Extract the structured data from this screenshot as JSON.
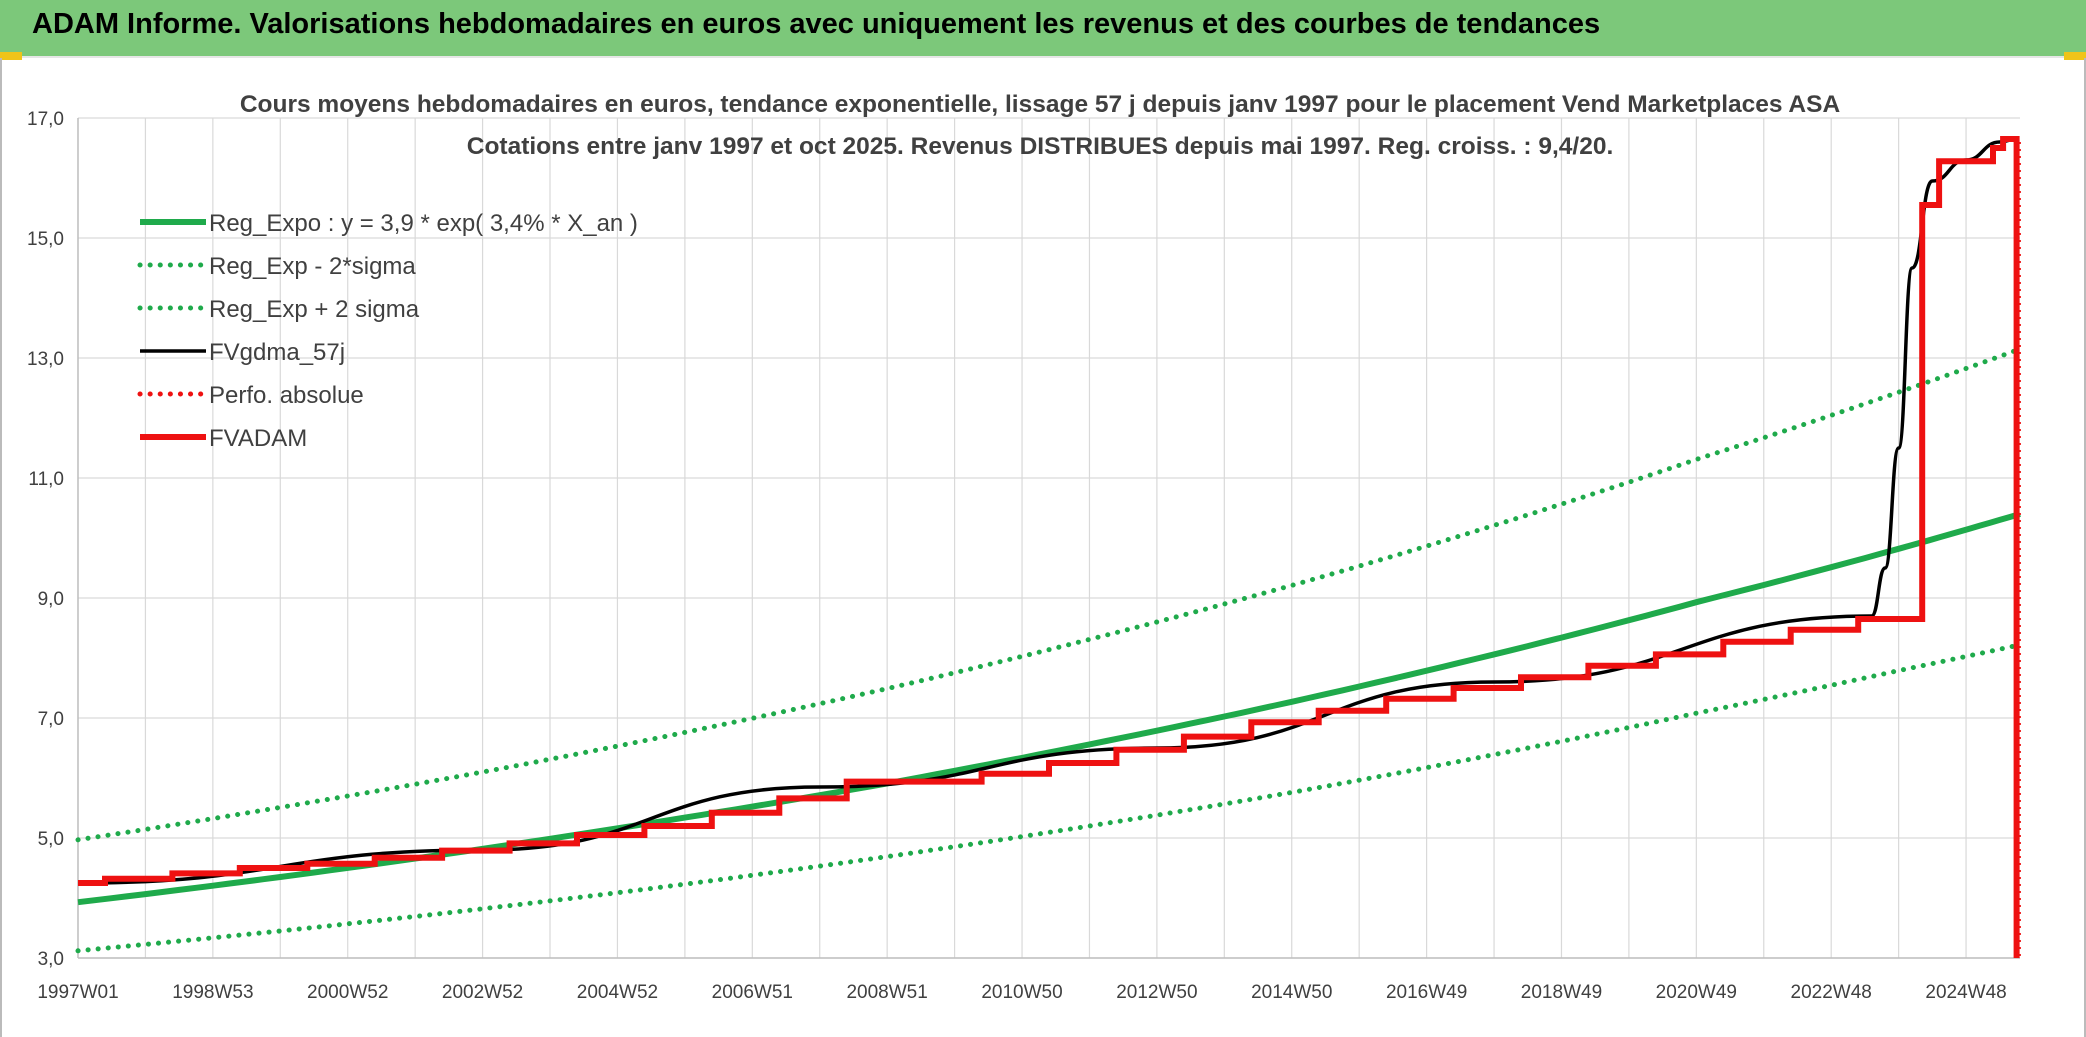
{
  "header": {
    "title": "ADAM Informe. Valorisations hebdomadaires en euros avec uniquement les revenus et des courbes de tendances"
  },
  "colors": {
    "banner": "#7cc87a",
    "reg_green": "#1faa4b",
    "red": "#ee1111",
    "black": "#000000",
    "grid": "#d9d9d9"
  },
  "chart_data": {
    "type": "line",
    "title": "Cours moyens hebdomadaires en euros, tendance exponentielle, lissage 57 j depuis janv 1997 pour le placement Vend Marketplaces ASA",
    "subtitle": "Cotations entre janv 1997 et oct 2025. Revenus DISTRIBUES depuis mai 1997. Reg. croiss. : 9,4/20.",
    "xlabel": "",
    "ylabel": "",
    "x_range": [
      1997.0,
      2025.8
    ],
    "ylim": [
      3.0,
      17.0
    ],
    "y_ticks": [
      "3,0",
      "5,0",
      "7,0",
      "9,0",
      "11,0",
      "13,0",
      "15,0",
      "17,0"
    ],
    "x_ticks": [
      {
        "label": "1997W01",
        "x": 1997.0
      },
      {
        "label": "1998W53",
        "x": 1999.0
      },
      {
        "label": "2000W52",
        "x": 2001.0
      },
      {
        "label": "2002W52",
        "x": 2003.0
      },
      {
        "label": "2004W52",
        "x": 2005.0
      },
      {
        "label": "2006W51",
        "x": 2007.0
      },
      {
        "label": "2008W51",
        "x": 2009.0
      },
      {
        "label": "2010W50",
        "x": 2011.0
      },
      {
        "label": "2012W50",
        "x": 2013.0
      },
      {
        "label": "2014W50",
        "x": 2015.0
      },
      {
        "label": "2016W49",
        "x": 2017.0
      },
      {
        "label": "2018W49",
        "x": 2019.0
      },
      {
        "label": "2020W49",
        "x": 2021.0
      },
      {
        "label": "2022W48",
        "x": 2023.0
      },
      {
        "label": "2024W48",
        "x": 2025.0
      }
    ],
    "legend": {
      "placement": "top-left",
      "entries": [
        {
          "name": "Reg_Expo : y = 3,9 * exp( 3,4% *  X_an )",
          "color": "#1faa4b",
          "style": "solid-thick"
        },
        {
          "name": "Reg_Exp - 2*sigma",
          "color": "#1faa4b",
          "style": "dotted"
        },
        {
          "name": "Reg_Exp + 2 sigma",
          "color": "#1faa4b",
          "style": "dotted"
        },
        {
          "name": "FVgdma_57j",
          "color": "#000000",
          "style": "solid"
        },
        {
          "name": "Perfo. absolue",
          "color": "#ee1111",
          "style": "dotted"
        },
        {
          "name": "FVADAM",
          "color": "#ee1111",
          "style": "solid-thick"
        }
      ]
    },
    "series": [
      {
        "name": "Reg_Expo : y = 3,9 * exp( 3,4% *  X_an )",
        "x": [
          1997.0,
          2000.0,
          2003.0,
          2006.0,
          2009.0,
          2012.0,
          2015.0,
          2018.0,
          2021.0,
          2024.0,
          2025.8
        ],
        "values": [
          3.93,
          4.35,
          4.82,
          5.34,
          5.91,
          6.56,
          7.27,
          8.06,
          8.93,
          9.82,
          10.4
        ]
      },
      {
        "name": "Reg_Exp - 2*sigma",
        "x": [
          1997.0,
          2000.0,
          2003.0,
          2006.0,
          2009.0,
          2012.0,
          2015.0,
          2018.0,
          2021.0,
          2024.0,
          2025.8
        ],
        "values": [
          3.12,
          3.45,
          3.82,
          4.23,
          4.69,
          5.2,
          5.76,
          6.39,
          7.08,
          7.79,
          8.22
        ]
      },
      {
        "name": "Reg_Exp + 2 sigma",
        "x": [
          1997.0,
          2000.0,
          2003.0,
          2006.0,
          2009.0,
          2012.0,
          2015.0,
          2018.0,
          2021.0,
          2024.0,
          2025.8
        ],
        "values": [
          4.97,
          5.51,
          6.1,
          6.76,
          7.49,
          8.31,
          9.21,
          10.21,
          11.31,
          12.43,
          13.15
        ]
      },
      {
        "name": "FVgdma_57j",
        "x": [
          1997.0,
          2003.0,
          2008.0,
          2013.0,
          2018.0,
          2023.6,
          2023.8,
          2024.0,
          2024.2,
          2024.5,
          2025.0,
          2025.5,
          2025.75
        ],
        "values": [
          4.25,
          4.8,
          5.85,
          6.5,
          7.6,
          8.7,
          9.5,
          11.5,
          14.5,
          15.95,
          16.3,
          16.6,
          16.65
        ]
      },
      {
        "name": "FVADAM",
        "x": [
          1997.0,
          1997.4,
          1997.4,
          1998.4,
          1998.4,
          1999.4,
          1999.4,
          2000.4,
          2000.4,
          2001.4,
          2001.4,
          2002.4,
          2002.4,
          2003.4,
          2003.4,
          2004.4,
          2004.4,
          2005.4,
          2005.4,
          2006.4,
          2006.4,
          2007.4,
          2007.4,
          2008.4,
          2008.4,
          2010.4,
          2010.4,
          2011.4,
          2011.4,
          2012.4,
          2012.4,
          2013.4,
          2013.4,
          2014.4,
          2014.4,
          2015.4,
          2015.4,
          2016.4,
          2016.4,
          2017.4,
          2017.4,
          2018.4,
          2018.4,
          2019.4,
          2019.4,
          2020.4,
          2020.4,
          2021.4,
          2021.4,
          2022.4,
          2022.4,
          2023.4,
          2023.4,
          2024.35,
          2024.35,
          2024.6,
          2024.6,
          2025.4,
          2025.4,
          2025.55,
          2025.55,
          2025.75,
          2025.75
        ],
        "values": [
          4.25,
          4.25,
          4.32,
          4.32,
          4.41,
          4.41,
          4.5,
          4.5,
          4.57,
          4.57,
          4.67,
          4.67,
          4.79,
          4.79,
          4.91,
          4.91,
          5.05,
          5.05,
          5.2,
          5.2,
          5.42,
          5.42,
          5.66,
          5.66,
          5.94,
          5.94,
          6.07,
          6.07,
          6.25,
          6.25,
          6.47,
          6.47,
          6.69,
          6.69,
          6.93,
          6.93,
          7.12,
          7.12,
          7.32,
          7.32,
          7.5,
          7.5,
          7.68,
          7.68,
          7.87,
          7.87,
          8.06,
          8.06,
          8.27,
          8.27,
          8.47,
          8.47,
          8.65,
          8.65,
          15.55,
          15.55,
          16.28,
          16.28,
          16.5,
          16.5,
          16.65,
          16.65,
          3.0
        ]
      }
    ]
  }
}
